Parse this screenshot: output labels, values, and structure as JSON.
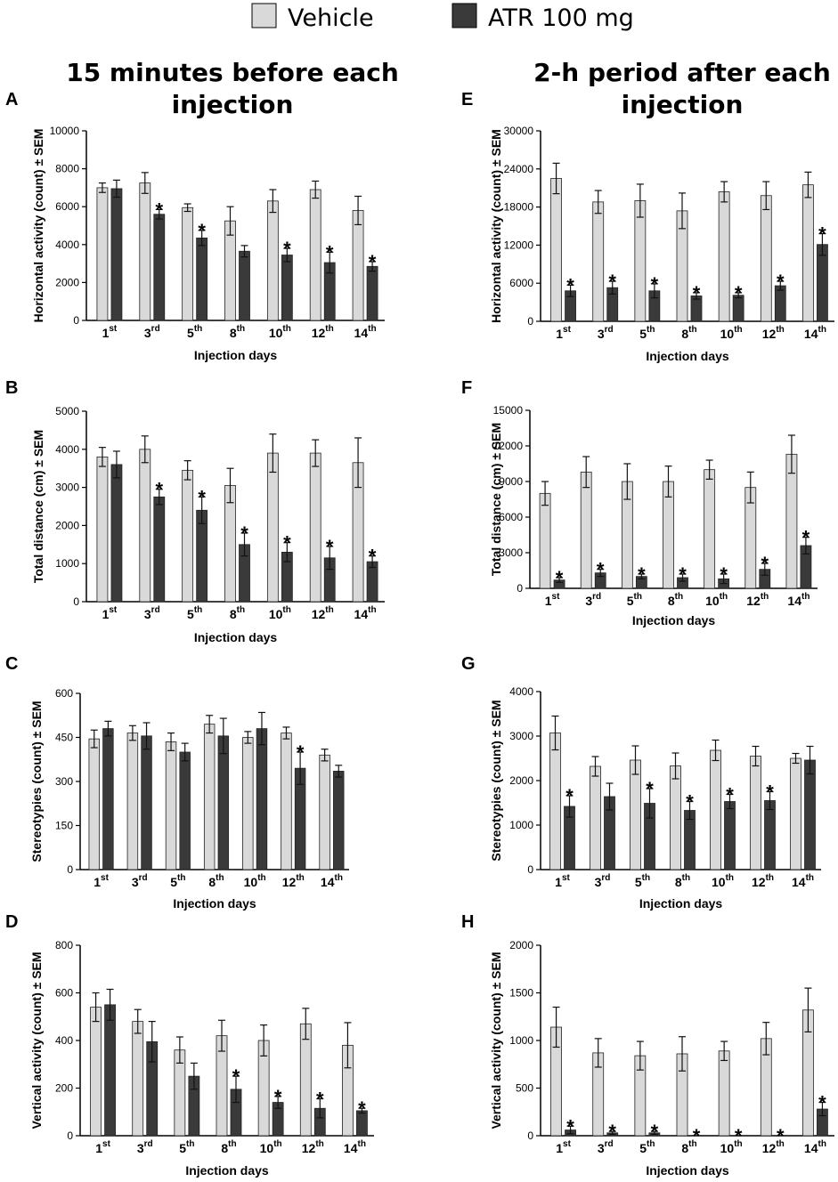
{
  "legend": {
    "vehicle_label": "Vehicle",
    "atr_label": "ATR 100 mg",
    "vehicle_color": "#d9d9d9",
    "atr_color": "#3a3a3a"
  },
  "column_titles": {
    "left_line1": "15 minutes before each",
    "left_line2": "injection",
    "right_line1": "2-h period after each",
    "right_line2": "injection"
  },
  "significance_marker": "*",
  "chart_data": [
    {
      "panel": "A",
      "type": "bar",
      "categories": [
        "1st",
        "3rd",
        "5th",
        "8th",
        "10th",
        "12th",
        "14th"
      ],
      "category_labels": [
        {
          "num": "1",
          "sup": "st"
        },
        {
          "num": "3",
          "sup": "rd"
        },
        {
          "num": "5",
          "sup": "th"
        },
        {
          "num": "8",
          "sup": "th"
        },
        {
          "num": "10",
          "sup": "th"
        },
        {
          "num": "12",
          "sup": "th"
        },
        {
          "num": "14",
          "sup": "th"
        }
      ],
      "xlabel": "Injection days",
      "ylabel": "Horizontal activity (count) ± SEM",
      "ylim": [
        0,
        10000
      ],
      "yticks": [
        "0",
        "2000",
        "4000",
        "6000",
        "8000",
        "10000"
      ],
      "series": [
        {
          "name": "Vehicle",
          "values": [
            7000,
            7250,
            5950,
            5250,
            6300,
            6900,
            5800
          ],
          "sem": [
            250,
            550,
            200,
            750,
            600,
            450,
            750
          ]
        },
        {
          "name": "ATR 100 mg",
          "values": [
            6950,
            5600,
            4350,
            3650,
            3450,
            3050,
            2850
          ],
          "sem": [
            450,
            250,
            400,
            300,
            350,
            550,
            250
          ],
          "significant": [
            false,
            true,
            true,
            false,
            true,
            true,
            true
          ]
        }
      ]
    },
    {
      "panel": "B",
      "type": "bar",
      "categories": [
        "1st",
        "3rd",
        "5th",
        "8th",
        "10th",
        "12th",
        "14th"
      ],
      "category_labels": [
        {
          "num": "1",
          "sup": "st"
        },
        {
          "num": "3",
          "sup": "rd"
        },
        {
          "num": "5",
          "sup": "th"
        },
        {
          "num": "8",
          "sup": "th"
        },
        {
          "num": "10",
          "sup": "th"
        },
        {
          "num": "12",
          "sup": "th"
        },
        {
          "num": "14",
          "sup": "th"
        }
      ],
      "xlabel": "Injection days",
      "ylabel": "Total distance (cm) ± SEM",
      "ylim": [
        0,
        5000
      ],
      "yticks": [
        "0",
        "1000",
        "2000",
        "3000",
        "4000",
        "5000"
      ],
      "series": [
        {
          "name": "Vehicle",
          "values": [
            3800,
            4000,
            3450,
            3050,
            3900,
            3900,
            3650
          ],
          "sem": [
            250,
            350,
            250,
            450,
            500,
            350,
            650
          ]
        },
        {
          "name": "ATR 100 mg",
          "values": [
            3600,
            2750,
            2400,
            1500,
            1300,
            1150,
            1050
          ],
          "sem": [
            350,
            200,
            350,
            300,
            250,
            300,
            150
          ],
          "significant": [
            false,
            true,
            true,
            true,
            true,
            true,
            true
          ]
        }
      ]
    },
    {
      "panel": "C",
      "type": "bar",
      "categories": [
        "1st",
        "3rd",
        "5th",
        "8th",
        "10th",
        "12th",
        "14th"
      ],
      "category_labels": [
        {
          "num": "1",
          "sup": "st"
        },
        {
          "num": "3",
          "sup": "rd"
        },
        {
          "num": "5",
          "sup": "th"
        },
        {
          "num": "8",
          "sup": "th"
        },
        {
          "num": "10",
          "sup": "th"
        },
        {
          "num": "12",
          "sup": "th"
        },
        {
          "num": "14",
          "sup": "th"
        }
      ],
      "xlabel": "Injection days",
      "ylabel": "Stereotypies (count) ± SEM",
      "ylim": [
        0,
        600
      ],
      "yticks": [
        "0",
        "150",
        "300",
        "450",
        "600"
      ],
      "series": [
        {
          "name": "Vehicle",
          "values": [
            445,
            465,
            435,
            495,
            450,
            465,
            390
          ],
          "sem": [
            30,
            25,
            30,
            30,
            20,
            20,
            20
          ]
        },
        {
          "name": "ATR 100 mg",
          "values": [
            480,
            455,
            400,
            455,
            480,
            345,
            335
          ],
          "sem": [
            25,
            45,
            30,
            60,
            55,
            55,
            20
          ],
          "significant": [
            false,
            false,
            false,
            false,
            false,
            true,
            false
          ]
        }
      ]
    },
    {
      "panel": "D",
      "type": "bar",
      "categories": [
        "1st",
        "3rd",
        "5th",
        "8th",
        "10th",
        "12th",
        "14th"
      ],
      "category_labels": [
        {
          "num": "1",
          "sup": "st"
        },
        {
          "num": "3",
          "sup": "rd"
        },
        {
          "num": "5",
          "sup": "th"
        },
        {
          "num": "8",
          "sup": "th"
        },
        {
          "num": "10",
          "sup": "th"
        },
        {
          "num": "12",
          "sup": "th"
        },
        {
          "num": "14",
          "sup": "th"
        }
      ],
      "xlabel": "Injection days",
      "ylabel": "Vertical activity (count) ± SEM",
      "ylim": [
        0,
        800
      ],
      "yticks": [
        "0",
        "200",
        "400",
        "600",
        "800"
      ],
      "series": [
        {
          "name": "Vehicle",
          "values": [
            540,
            480,
            360,
            420,
            400,
            470,
            380
          ],
          "sem": [
            60,
            50,
            55,
            65,
            65,
            65,
            95
          ]
        },
        {
          "name": "ATR 100 mg",
          "values": [
            550,
            395,
            250,
            195,
            140,
            115,
            105
          ],
          "sem": [
            65,
            85,
            55,
            55,
            25,
            40,
            10
          ],
          "significant": [
            false,
            false,
            false,
            true,
            true,
            true,
            true
          ]
        }
      ]
    },
    {
      "panel": "E",
      "type": "bar",
      "categories": [
        "1st",
        "3rd",
        "5th",
        "8th",
        "10th",
        "12th",
        "14th"
      ],
      "category_labels": [
        {
          "num": "1",
          "sup": "st"
        },
        {
          "num": "3",
          "sup": "rd"
        },
        {
          "num": "5",
          "sup": "th"
        },
        {
          "num": "8",
          "sup": "th"
        },
        {
          "num": "10",
          "sup": "th"
        },
        {
          "num": "12",
          "sup": "th"
        },
        {
          "num": "14",
          "sup": "th"
        }
      ],
      "xlabel": "Injection days",
      "ylabel": "Horizontal activity (count) ± SEM",
      "ylim": [
        0,
        30000
      ],
      "yticks": [
        "0",
        "6000",
        "12000",
        "18000",
        "24000",
        "30000"
      ],
      "series": [
        {
          "name": "Vehicle",
          "values": [
            22500,
            18800,
            19000,
            17400,
            20400,
            19800,
            21500
          ],
          "sem": [
            2400,
            1800,
            2600,
            2800,
            1600,
            2200,
            2000
          ]
        },
        {
          "name": "ATR 100 mg",
          "values": [
            4800,
            5300,
            4800,
            4000,
            4100,
            5600,
            12100
          ],
          "sem": [
            900,
            1000,
            1100,
            500,
            400,
            700,
            1700
          ],
          "significant": [
            true,
            true,
            true,
            true,
            true,
            true,
            true
          ]
        }
      ]
    },
    {
      "panel": "F",
      "type": "bar",
      "categories": [
        "1st",
        "3rd",
        "5th",
        "8th",
        "10th",
        "12th",
        "14th"
      ],
      "category_labels": [
        {
          "num": "1",
          "sup": "st"
        },
        {
          "num": "3",
          "sup": "rd"
        },
        {
          "num": "5",
          "sup": "th"
        },
        {
          "num": "8",
          "sup": "th"
        },
        {
          "num": "10",
          "sup": "th"
        },
        {
          "num": "12",
          "sup": "th"
        },
        {
          "num": "14",
          "sup": "th"
        }
      ],
      "xlabel": "Injection days",
      "ylabel": "Total distance (cm) ± SEM",
      "ylim": [
        0,
        15000
      ],
      "yticks": [
        "0",
        "3000",
        "6000",
        "9000",
        "12000",
        "15000"
      ],
      "series": [
        {
          "name": "Vehicle",
          "values": [
            8000,
            9800,
            9000,
            9000,
            10000,
            8500,
            11300
          ],
          "sem": [
            1000,
            1300,
            1500,
            1300,
            800,
            1300,
            1600
          ]
        },
        {
          "name": "ATR 100 mg",
          "values": [
            700,
            1300,
            1000,
            900,
            800,
            1600,
            3600
          ],
          "sem": [
            200,
            300,
            200,
            300,
            400,
            500,
            700
          ],
          "significant": [
            true,
            true,
            true,
            true,
            true,
            true,
            true
          ]
        }
      ]
    },
    {
      "panel": "G",
      "type": "bar",
      "categories": [
        "1st",
        "3rd",
        "5th",
        "8th",
        "10th",
        "12th",
        "14th"
      ],
      "category_labels": [
        {
          "num": "1",
          "sup": "st"
        },
        {
          "num": "3",
          "sup": "rd"
        },
        {
          "num": "5",
          "sup": "th"
        },
        {
          "num": "8",
          "sup": "th"
        },
        {
          "num": "10",
          "sup": "th"
        },
        {
          "num": "12",
          "sup": "th"
        },
        {
          "num": "14",
          "sup": "th"
        }
      ],
      "xlabel": "Injection days",
      "ylabel": "Stereotypies (count) ± SEM",
      "ylim": [
        0,
        4000
      ],
      "yticks": [
        "0",
        "1000",
        "2000",
        "3000",
        "4000"
      ],
      "series": [
        {
          "name": "Vehicle",
          "values": [
            3070,
            2320,
            2460,
            2330,
            2680,
            2550,
            2500
          ],
          "sem": [
            380,
            220,
            320,
            290,
            230,
            220,
            110
          ]
        },
        {
          "name": "ATR 100 mg",
          "values": [
            1420,
            1640,
            1490,
            1330,
            1530,
            1550,
            2460
          ],
          "sem": [
            240,
            300,
            330,
            200,
            160,
            200,
            310
          ],
          "significant": [
            true,
            false,
            true,
            true,
            true,
            true,
            false
          ]
        }
      ]
    },
    {
      "panel": "H",
      "type": "bar",
      "categories": [
        "1st",
        "3rd",
        "5th",
        "8th",
        "10th",
        "12th",
        "14th"
      ],
      "category_labels": [
        {
          "num": "1",
          "sup": "st"
        },
        {
          "num": "3",
          "sup": "rd"
        },
        {
          "num": "5",
          "sup": "th"
        },
        {
          "num": "8",
          "sup": "th"
        },
        {
          "num": "10",
          "sup": "th"
        },
        {
          "num": "12",
          "sup": "th"
        },
        {
          "num": "14",
          "sup": "th"
        }
      ],
      "xlabel": "Injection days",
      "ylabel": "Vertical activity (count) ± SEM",
      "ylim": [
        0,
        2000
      ],
      "yticks": [
        "0",
        "500",
        "1000",
        "1500",
        "2000"
      ],
      "series": [
        {
          "name": "Vehicle",
          "values": [
            1140,
            870,
            840,
            860,
            890,
            1020,
            1320
          ],
          "sem": [
            210,
            150,
            150,
            180,
            100,
            170,
            230
          ]
        },
        {
          "name": "ATR 100 mg",
          "values": [
            60,
            30,
            30,
            0,
            0,
            0,
            280
          ],
          "sem": [
            40,
            15,
            15,
            0,
            0,
            0,
            70
          ],
          "significant": [
            true,
            true,
            true,
            true,
            true,
            true,
            true
          ]
        }
      ]
    }
  ]
}
